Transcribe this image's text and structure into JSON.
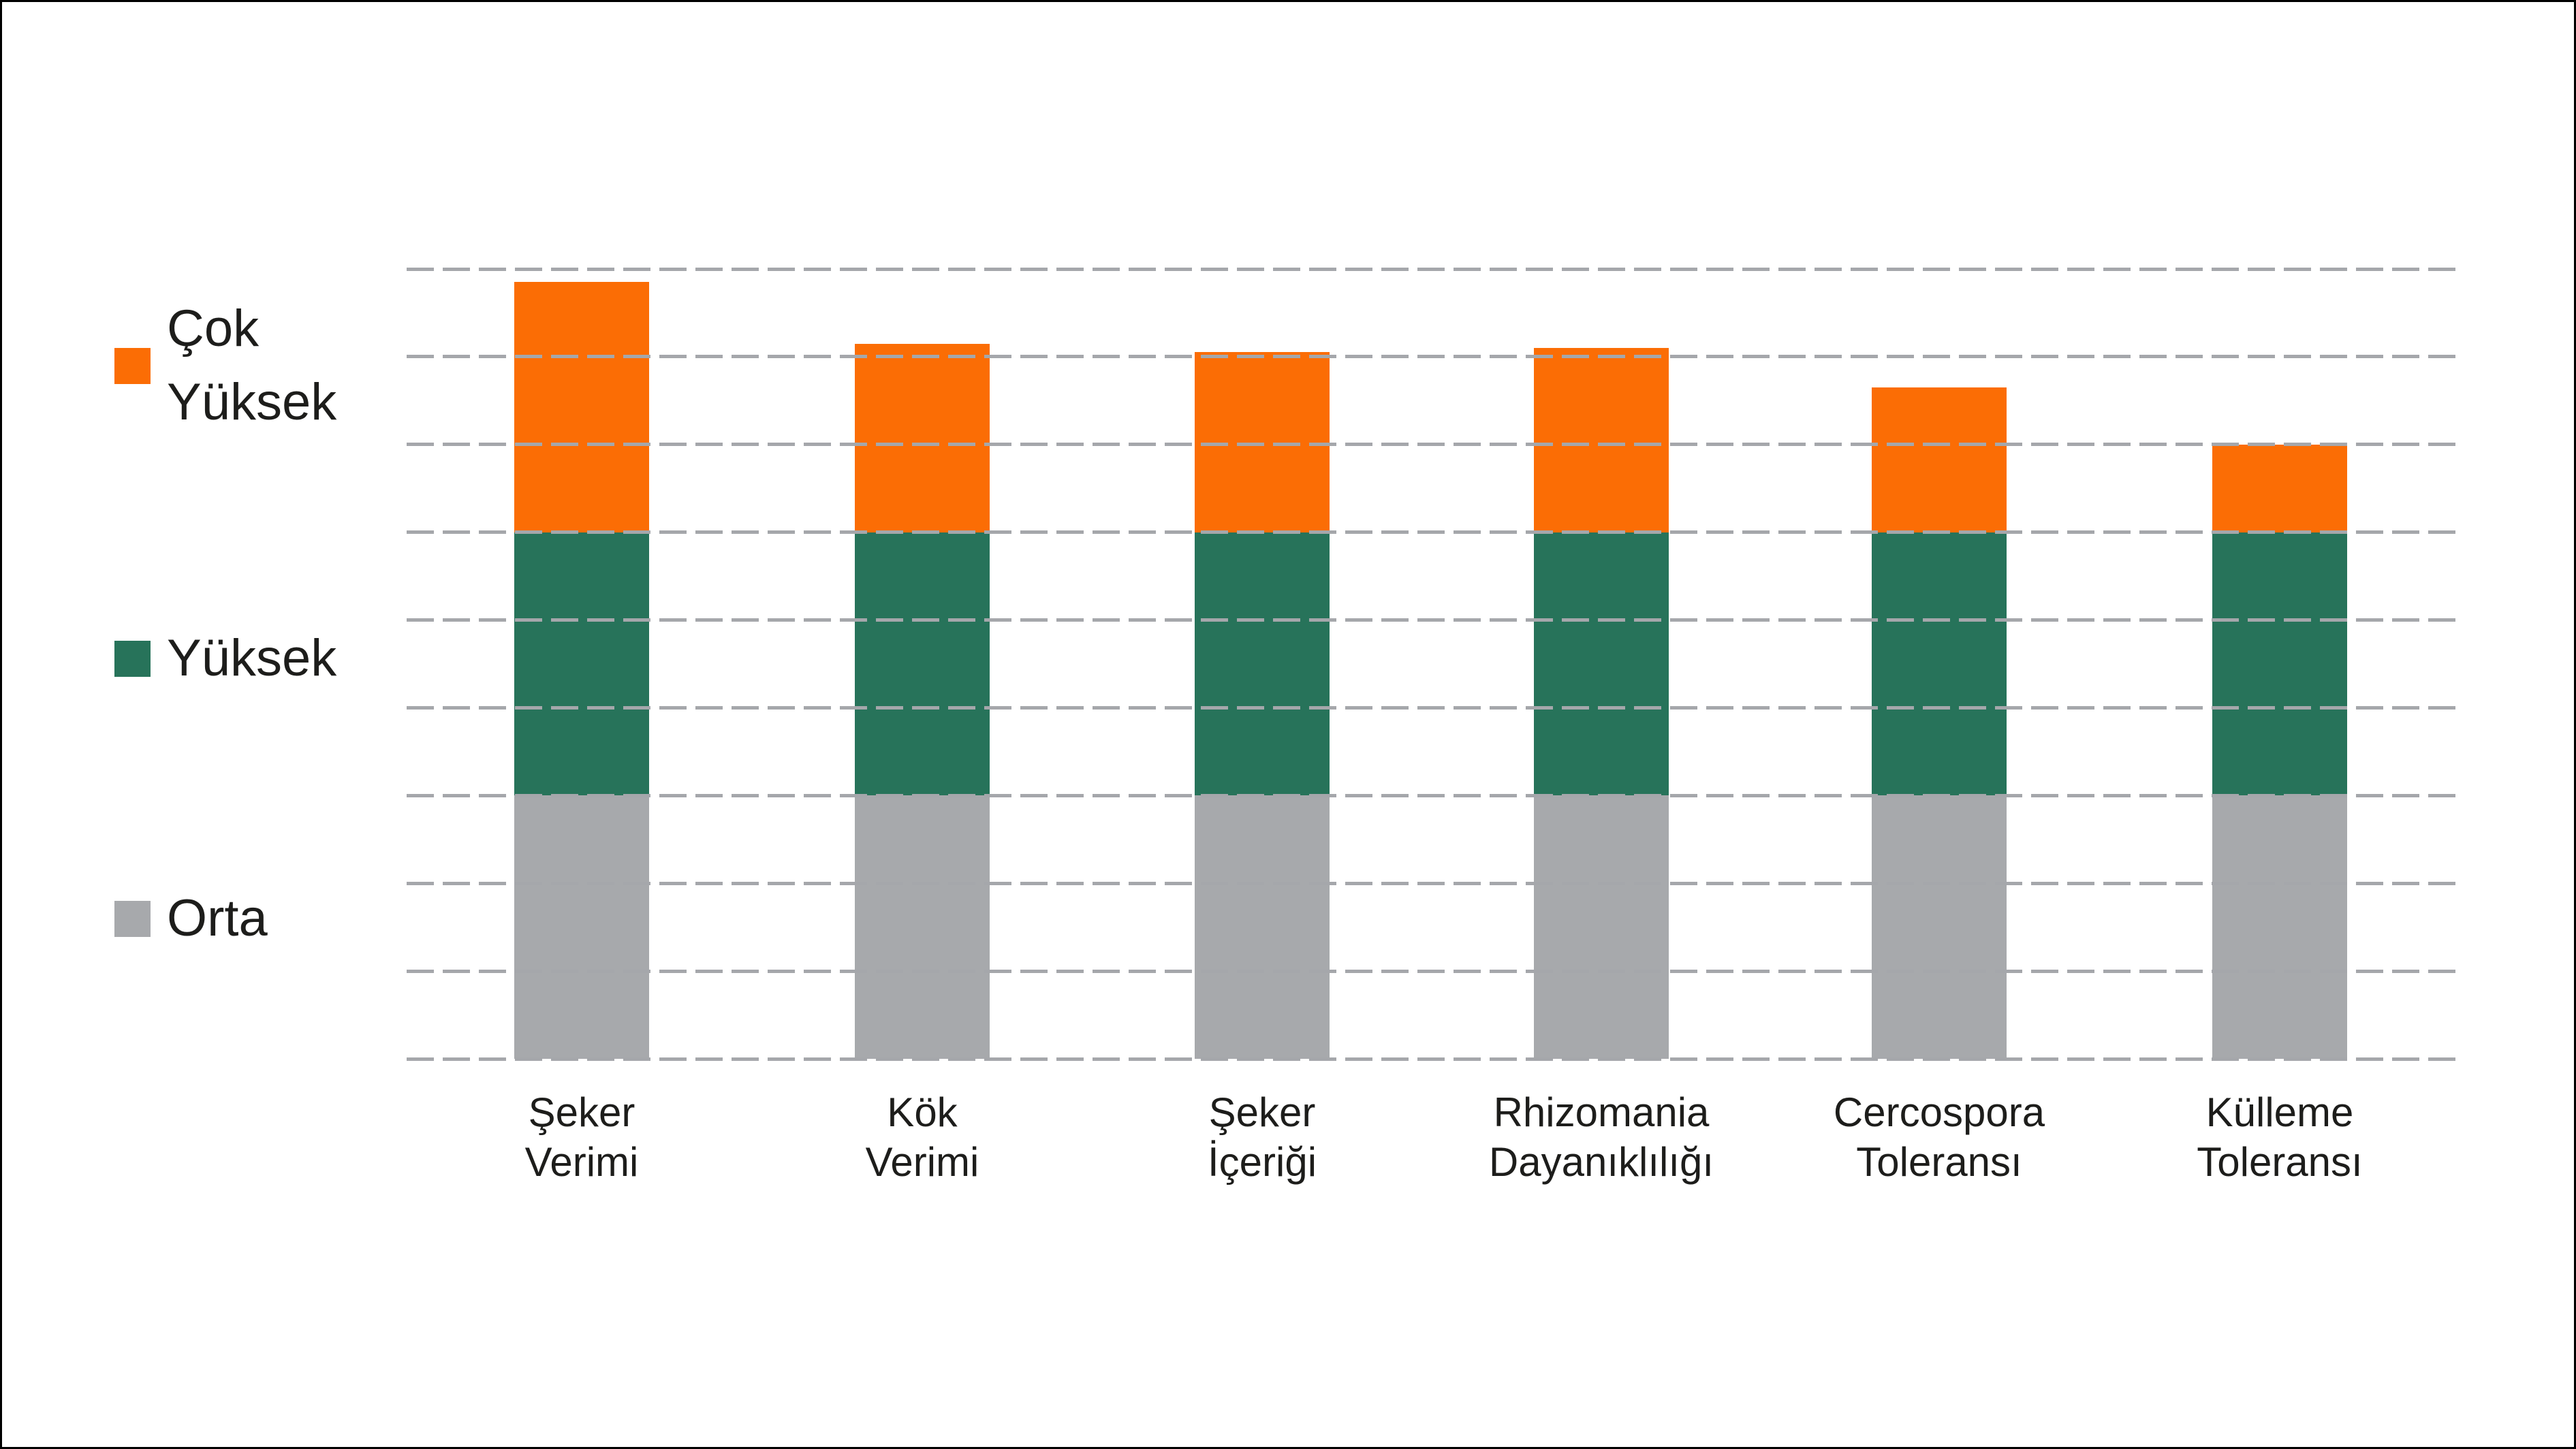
{
  "page": {
    "background": "#FFFFFF",
    "border_color": "#000000"
  },
  "chart_data": {
    "type": "bar",
    "stacked": true,
    "title": "",
    "xlabel": "",
    "ylabel": "",
    "categories": [
      "Şeker Verimi",
      "Kök Verimi",
      "Şeker İçeriği",
      "Rhizomania Dayanıklılığı",
      "Cercospora Toleransı",
      "Külleme Toleransı"
    ],
    "category_lines": [
      [
        "Şeker",
        "Verimi"
      ],
      [
        "Kök",
        "Verimi"
      ],
      [
        "Şeker",
        "İçeriği"
      ],
      [
        "Rhizomania",
        "Dayanıklılığı"
      ],
      [
        "Cercospora",
        "Toleransı"
      ],
      [
        "Külleme",
        "Toleransı"
      ]
    ],
    "series": [
      {
        "name": "Orta",
        "color": "#A7A9AC",
        "values": [
          3,
          3,
          3,
          3,
          3,
          3
        ]
      },
      {
        "name": "Yüksek",
        "color": "#27735A",
        "values": [
          3,
          3,
          3,
          3,
          3,
          3
        ]
      },
      {
        "name": "Çok Yüksek",
        "color": "#FB6D05",
        "values": [
          2.85,
          2.15,
          2.05,
          2.1,
          1.65,
          1.0
        ]
      }
    ],
    "totals": [
      8.85,
      8.15,
      8.05,
      8.1,
      7.65,
      7.0
    ],
    "ylim": [
      0,
      9
    ],
    "y_tick_labels_visible": false,
    "gridlines": {
      "count": 10,
      "style": "dashed",
      "color": "#A5A7AB",
      "orientation": "horizontal"
    },
    "legend_position": "left"
  },
  "legend": {
    "items": [
      {
        "label": "Çok Yüksek",
        "lines": [
          "Çok",
          "Yüksek"
        ],
        "color": "#FB6D05"
      },
      {
        "label": "Yüksek",
        "lines": [
          "Yüksek"
        ],
        "color": "#27735A"
      },
      {
        "label": "Orta",
        "lines": [
          "Orta"
        ],
        "color": "#A7A9AC"
      }
    ]
  }
}
